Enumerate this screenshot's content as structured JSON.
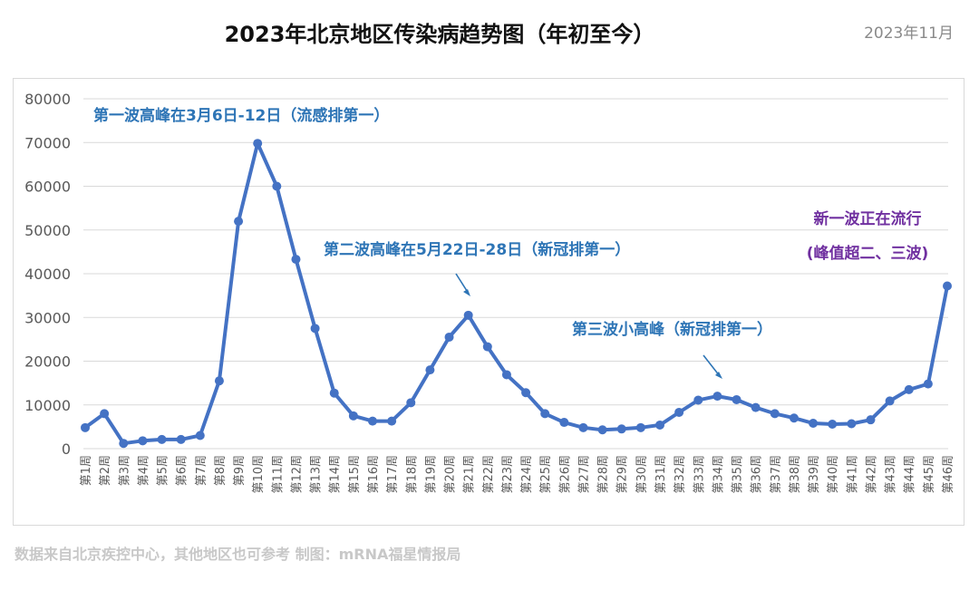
{
  "header": {
    "title": "2023年北京地区传染病趋势图（年初至今）",
    "date": "2023年11月"
  },
  "footer": {
    "source": "数据来自北京疾控中心，其他地区也可参考  制图：mRNA福星情报局"
  },
  "colors": {
    "line": "#4472C4",
    "blue_text": "#2E75B6",
    "purple_text": "#7030A0",
    "grid": "#d9d9d9",
    "axis_text": "#595959"
  },
  "chart_data": {
    "type": "line",
    "categories": [
      "第1周",
      "第2周",
      "第3周",
      "第4周",
      "第5周",
      "第6周",
      "第7周",
      "第8周",
      "第9周",
      "第10周",
      "第11周",
      "第12周",
      "第13周",
      "第14周",
      "第15周",
      "第16周",
      "第17周",
      "第18周",
      "第19周",
      "第20周",
      "第21周",
      "第22周",
      "第23周",
      "第24周",
      "第25周",
      "第26周",
      "第27周",
      "第28周",
      "第29周",
      "第30周",
      "第31周",
      "第32周",
      "第33周",
      "第34周",
      "第35周",
      "第36周",
      "第37周",
      "第38周",
      "第39周",
      "第40周",
      "第41周",
      "第42周",
      "第43周",
      "第44周",
      "第45周",
      "第46周"
    ],
    "series": [
      {
        "values": [
          4800,
          8000,
          1200,
          1800,
          2100,
          2100,
          3000,
          15500,
          52000,
          69800,
          60000,
          43300,
          27500,
          12700,
          7500,
          6300,
          6300,
          10500,
          18000,
          25500,
          30500,
          23300,
          16900,
          12800,
          8000,
          6000,
          4800,
          4300,
          4500,
          4800,
          5400,
          8300,
          11100,
          12000,
          11200,
          9400,
          8000,
          7000,
          5800,
          5600,
          5700,
          6600,
          10900,
          13500,
          14800,
          37200
        ]
      }
    ],
    "ylim": [
      0,
      80000
    ],
    "yticks": [
      0,
      10000,
      20000,
      30000,
      40000,
      50000,
      60000,
      70000,
      80000
    ],
    "grid": true,
    "annotations": [
      {
        "text": "第一波高峰在3月6日-12日（流感排第一）",
        "color": "blue"
      },
      {
        "text": "第二波高峰在5月22日-28日（新冠排第一）",
        "color": "blue"
      },
      {
        "text": "第三波小高峰（新冠排第一）",
        "color": "blue"
      },
      {
        "text": "新一波正在流行",
        "color": "purple"
      },
      {
        "text": "(峰值超二、三波)",
        "color": "purple"
      }
    ]
  }
}
